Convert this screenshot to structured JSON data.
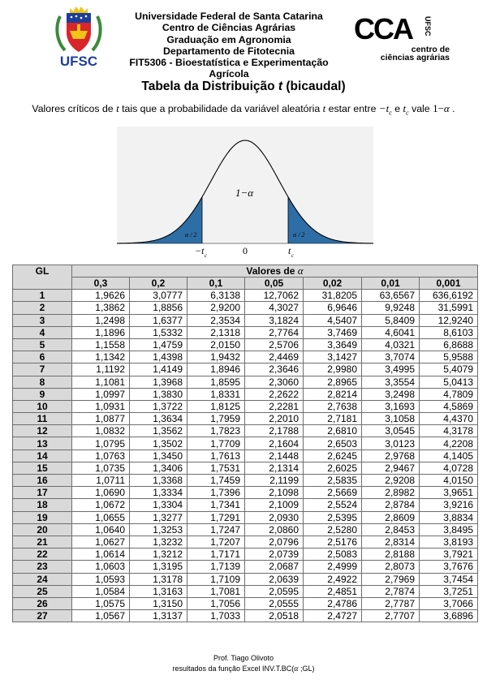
{
  "header": {
    "university": "Universidade Federal de Santa Catarina",
    "center": "Centro de Ciências Agrárias",
    "program": "Graduação em Agronomia",
    "department": "Departamento de Fitotecnia",
    "course": "FIT5306 - Bioestatística e Experimentação Agrícola",
    "ufsc_logo_text": "UFSC",
    "cca_logo_letters": "CCA",
    "cca_logo_ufsc": "UFSC",
    "cca_logo_line1": "centro de",
    "cca_logo_line2": "ciências agrárias"
  },
  "title": {
    "prefix": "Tabela da Distribuição ",
    "italic": "t",
    "suffix": " (bicaudal)"
  },
  "subtitle": {
    "part1": "Valores críticos de ",
    "t1": "t",
    "part2": " tais que a probabilidade da variável aleatória ",
    "t2": "t",
    "part3": " estar entre ",
    "neg_tc": "−t",
    "sub_c1": "c",
    "part4": " e ",
    "tc": "t",
    "sub_c2": "c",
    "part5": " vale ",
    "one_minus": "1−",
    "alpha": "α",
    "part6": " ."
  },
  "figure": {
    "center_label": "1−α",
    "left_tail_label": "α / 2",
    "right_tail_label": "α / 2",
    "x_neg_tc": "−t",
    "x_zero": "0",
    "x_tc": "t",
    "sub": "c",
    "tail_color": "#2e6ea6",
    "panel_color": "#f2f2f2"
  },
  "table": {
    "gl_header": "GL",
    "values_header_prefix": "Valores de ",
    "values_header_symbol": "α",
    "alphas": [
      "0,3",
      "0,2",
      "0,1",
      "0,05",
      "0,02",
      "0,01",
      "0,001"
    ],
    "header_bg": "#d9d9d9",
    "rows": [
      {
        "gl": "1",
        "v": [
          "1,9626",
          "3,0777",
          "6,3138",
          "12,7062",
          "31,8205",
          "63,6567",
          "636,6192"
        ]
      },
      {
        "gl": "2",
        "v": [
          "1,3862",
          "1,8856",
          "2,9200",
          "4,3027",
          "6,9646",
          "9,9248",
          "31,5991"
        ]
      },
      {
        "gl": "3",
        "v": [
          "1,2498",
          "1,6377",
          "2,3534",
          "3,1824",
          "4,5407",
          "5,8409",
          "12,9240"
        ]
      },
      {
        "gl": "4",
        "v": [
          "1,1896",
          "1,5332",
          "2,1318",
          "2,7764",
          "3,7469",
          "4,6041",
          "8,6103"
        ]
      },
      {
        "gl": "5",
        "v": [
          "1,1558",
          "1,4759",
          "2,0150",
          "2,5706",
          "3,3649",
          "4,0321",
          "6,8688"
        ]
      },
      {
        "gl": "6",
        "v": [
          "1,1342",
          "1,4398",
          "1,9432",
          "2,4469",
          "3,1427",
          "3,7074",
          "5,9588"
        ]
      },
      {
        "gl": "7",
        "v": [
          "1,1192",
          "1,4149",
          "1,8946",
          "2,3646",
          "2,9980",
          "3,4995",
          "5,4079"
        ]
      },
      {
        "gl": "8",
        "v": [
          "1,1081",
          "1,3968",
          "1,8595",
          "2,3060",
          "2,8965",
          "3,3554",
          "5,0413"
        ]
      },
      {
        "gl": "9",
        "v": [
          "1,0997",
          "1,3830",
          "1,8331",
          "2,2622",
          "2,8214",
          "3,2498",
          "4,7809"
        ]
      },
      {
        "gl": "10",
        "v": [
          "1,0931",
          "1,3722",
          "1,8125",
          "2,2281",
          "2,7638",
          "3,1693",
          "4,5869"
        ]
      },
      {
        "gl": "11",
        "v": [
          "1,0877",
          "1,3634",
          "1,7959",
          "2,2010",
          "2,7181",
          "3,1058",
          "4,4370"
        ]
      },
      {
        "gl": "12",
        "v": [
          "1,0832",
          "1,3562",
          "1,7823",
          "2,1788",
          "2,6810",
          "3,0545",
          "4,3178"
        ]
      },
      {
        "gl": "13",
        "v": [
          "1,0795",
          "1,3502",
          "1,7709",
          "2,1604",
          "2,6503",
          "3,0123",
          "4,2208"
        ]
      },
      {
        "gl": "14",
        "v": [
          "1,0763",
          "1,3450",
          "1,7613",
          "2,1448",
          "2,6245",
          "2,9768",
          "4,1405"
        ]
      },
      {
        "gl": "15",
        "v": [
          "1,0735",
          "1,3406",
          "1,7531",
          "2,1314",
          "2,6025",
          "2,9467",
          "4,0728"
        ]
      },
      {
        "gl": "16",
        "v": [
          "1,0711",
          "1,3368",
          "1,7459",
          "2,1199",
          "2,5835",
          "2,9208",
          "4,0150"
        ]
      },
      {
        "gl": "17",
        "v": [
          "1,0690",
          "1,3334",
          "1,7396",
          "2,1098",
          "2,5669",
          "2,8982",
          "3,9651"
        ]
      },
      {
        "gl": "18",
        "v": [
          "1,0672",
          "1,3304",
          "1,7341",
          "2,1009",
          "2,5524",
          "2,8784",
          "3,9216"
        ]
      },
      {
        "gl": "19",
        "v": [
          "1,0655",
          "1,3277",
          "1,7291",
          "2,0930",
          "2,5395",
          "2,8609",
          "3,8834"
        ]
      },
      {
        "gl": "20",
        "v": [
          "1,0640",
          "1,3253",
          "1,7247",
          "2,0860",
          "2,5280",
          "2,8453",
          "3,8495"
        ]
      },
      {
        "gl": "21",
        "v": [
          "1,0627",
          "1,3232",
          "1,7207",
          "2,0796",
          "2,5176",
          "2,8314",
          "3,8193"
        ]
      },
      {
        "gl": "22",
        "v": [
          "1,0614",
          "1,3212",
          "1,7171",
          "2,0739",
          "2,5083",
          "2,8188",
          "3,7921"
        ]
      },
      {
        "gl": "23",
        "v": [
          "1,0603",
          "1,3195",
          "1,7139",
          "2,0687",
          "2,4999",
          "2,8073",
          "3,7676"
        ]
      },
      {
        "gl": "24",
        "v": [
          "1,0593",
          "1,3178",
          "1,7109",
          "2,0639",
          "2,4922",
          "2,7969",
          "3,7454"
        ]
      },
      {
        "gl": "25",
        "v": [
          "1,0584",
          "1,3163",
          "1,7081",
          "2,0595",
          "2,4851",
          "2,7874",
          "3,7251"
        ]
      },
      {
        "gl": "26",
        "v": [
          "1,0575",
          "1,3150",
          "1,7056",
          "2,0555",
          "2,4786",
          "2,7787",
          "3,7066"
        ]
      },
      {
        "gl": "27",
        "v": [
          "1,0567",
          "1,3137",
          "1,7033",
          "2,0518",
          "2,4727",
          "2,7707",
          "3,6896"
        ]
      }
    ]
  },
  "footer": {
    "author": "Prof. Tiago Olivoto",
    "note_prefix": "resultados da função Excel INV.T.BC(",
    "note_alpha": "α",
    "note_suffix": " ;GL)"
  }
}
